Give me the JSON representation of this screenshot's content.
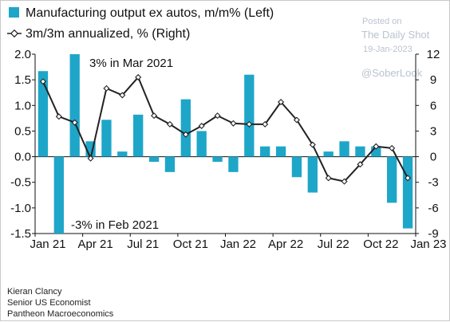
{
  "watermark": {
    "line1": "Posted on",
    "line2": "The Daily Shot",
    "line3": "19-Jan-2023",
    "handle": "@SoberLook"
  },
  "footer": {
    "name": "Kieran Clancy",
    "title": "Senior US Economist",
    "company": "Pantheon Macroeconomics"
  },
  "colors": {
    "bar": "#1ea6c9",
    "line": "#222222",
    "axis": "#111111"
  },
  "chart_data": {
    "type": "bar",
    "legend": [
      {
        "label": "Manufacturing output ex autos, m/m% (Left)",
        "marker": "bar"
      },
      {
        "label": "3m/3m annualized, % (Right)",
        "marker": "line-diamond"
      }
    ],
    "categories": [
      "Jan 21",
      "Feb 21",
      "Mar 21",
      "Apr 21",
      "May 21",
      "Jun 21",
      "Jul 21",
      "Aug 21",
      "Sep 21",
      "Oct 21",
      "Nov 21",
      "Dec 21",
      "Jan 22",
      "Feb 22",
      "Mar 22",
      "Apr 22",
      "May 22",
      "Jun 22",
      "Jul 22",
      "Aug 22",
      "Sep 22",
      "Oct 22",
      "Nov 22",
      "Dec 22"
    ],
    "x_tick_labels": [
      {
        "index": 0,
        "label": "Jan 21"
      },
      {
        "index": 3,
        "label": "Apr 21"
      },
      {
        "index": 6,
        "label": "Jul 21"
      },
      {
        "index": 9,
        "label": "Oct 21"
      },
      {
        "index": 12,
        "label": "Jan 22"
      },
      {
        "index": 15,
        "label": "Apr 22"
      },
      {
        "index": 18,
        "label": "Jul 22"
      },
      {
        "index": 21,
        "label": "Oct 22"
      },
      {
        "index": 24,
        "label": "Jan 23"
      }
    ],
    "series": [
      {
        "name": "Manufacturing output ex autos, m/m% (Left)",
        "type": "bar",
        "axis": "left",
        "values": [
          1.67,
          -1.55,
          2.0,
          0.3,
          0.72,
          0.1,
          0.82,
          -0.1,
          -0.3,
          1.12,
          0.5,
          -0.1,
          -0.3,
          1.6,
          0.2,
          0.2,
          -0.4,
          -0.7,
          0.1,
          0.3,
          0.2,
          0.2,
          -0.9,
          -1.4
        ]
      },
      {
        "name": "3m/3m annualized, % (Right)",
        "type": "line",
        "axis": "right",
        "values": [
          8.8,
          4.7,
          4.0,
          -0.2,
          8.0,
          7.2,
          9.3,
          4.8,
          3.8,
          2.6,
          3.6,
          4.8,
          3.9,
          3.8,
          3.8,
          6.4,
          4.3,
          1.4,
          -2.5,
          -2.9,
          -0.9,
          1.2,
          1.0,
          -2.5
        ]
      }
    ],
    "ylim_left": [
      -1.5,
      2.0
    ],
    "yticks_left": [
      "2.0",
      "1.5",
      "1.0",
      "0.5",
      "0.0",
      "-0.5",
      "-1.0",
      "-1.5"
    ],
    "ylim_right": [
      -9,
      12
    ],
    "yticks_right": [
      "12",
      "9",
      "6",
      "3",
      "0",
      "-3",
      "-6",
      "-9"
    ],
    "annotations": [
      {
        "text": "3% in Mar 2021",
        "points_to": "Mar 21"
      },
      {
        "text": "-3% in Feb 2021",
        "points_to": "Feb 21"
      }
    ],
    "grid": false,
    "legend_position": "top-left"
  }
}
